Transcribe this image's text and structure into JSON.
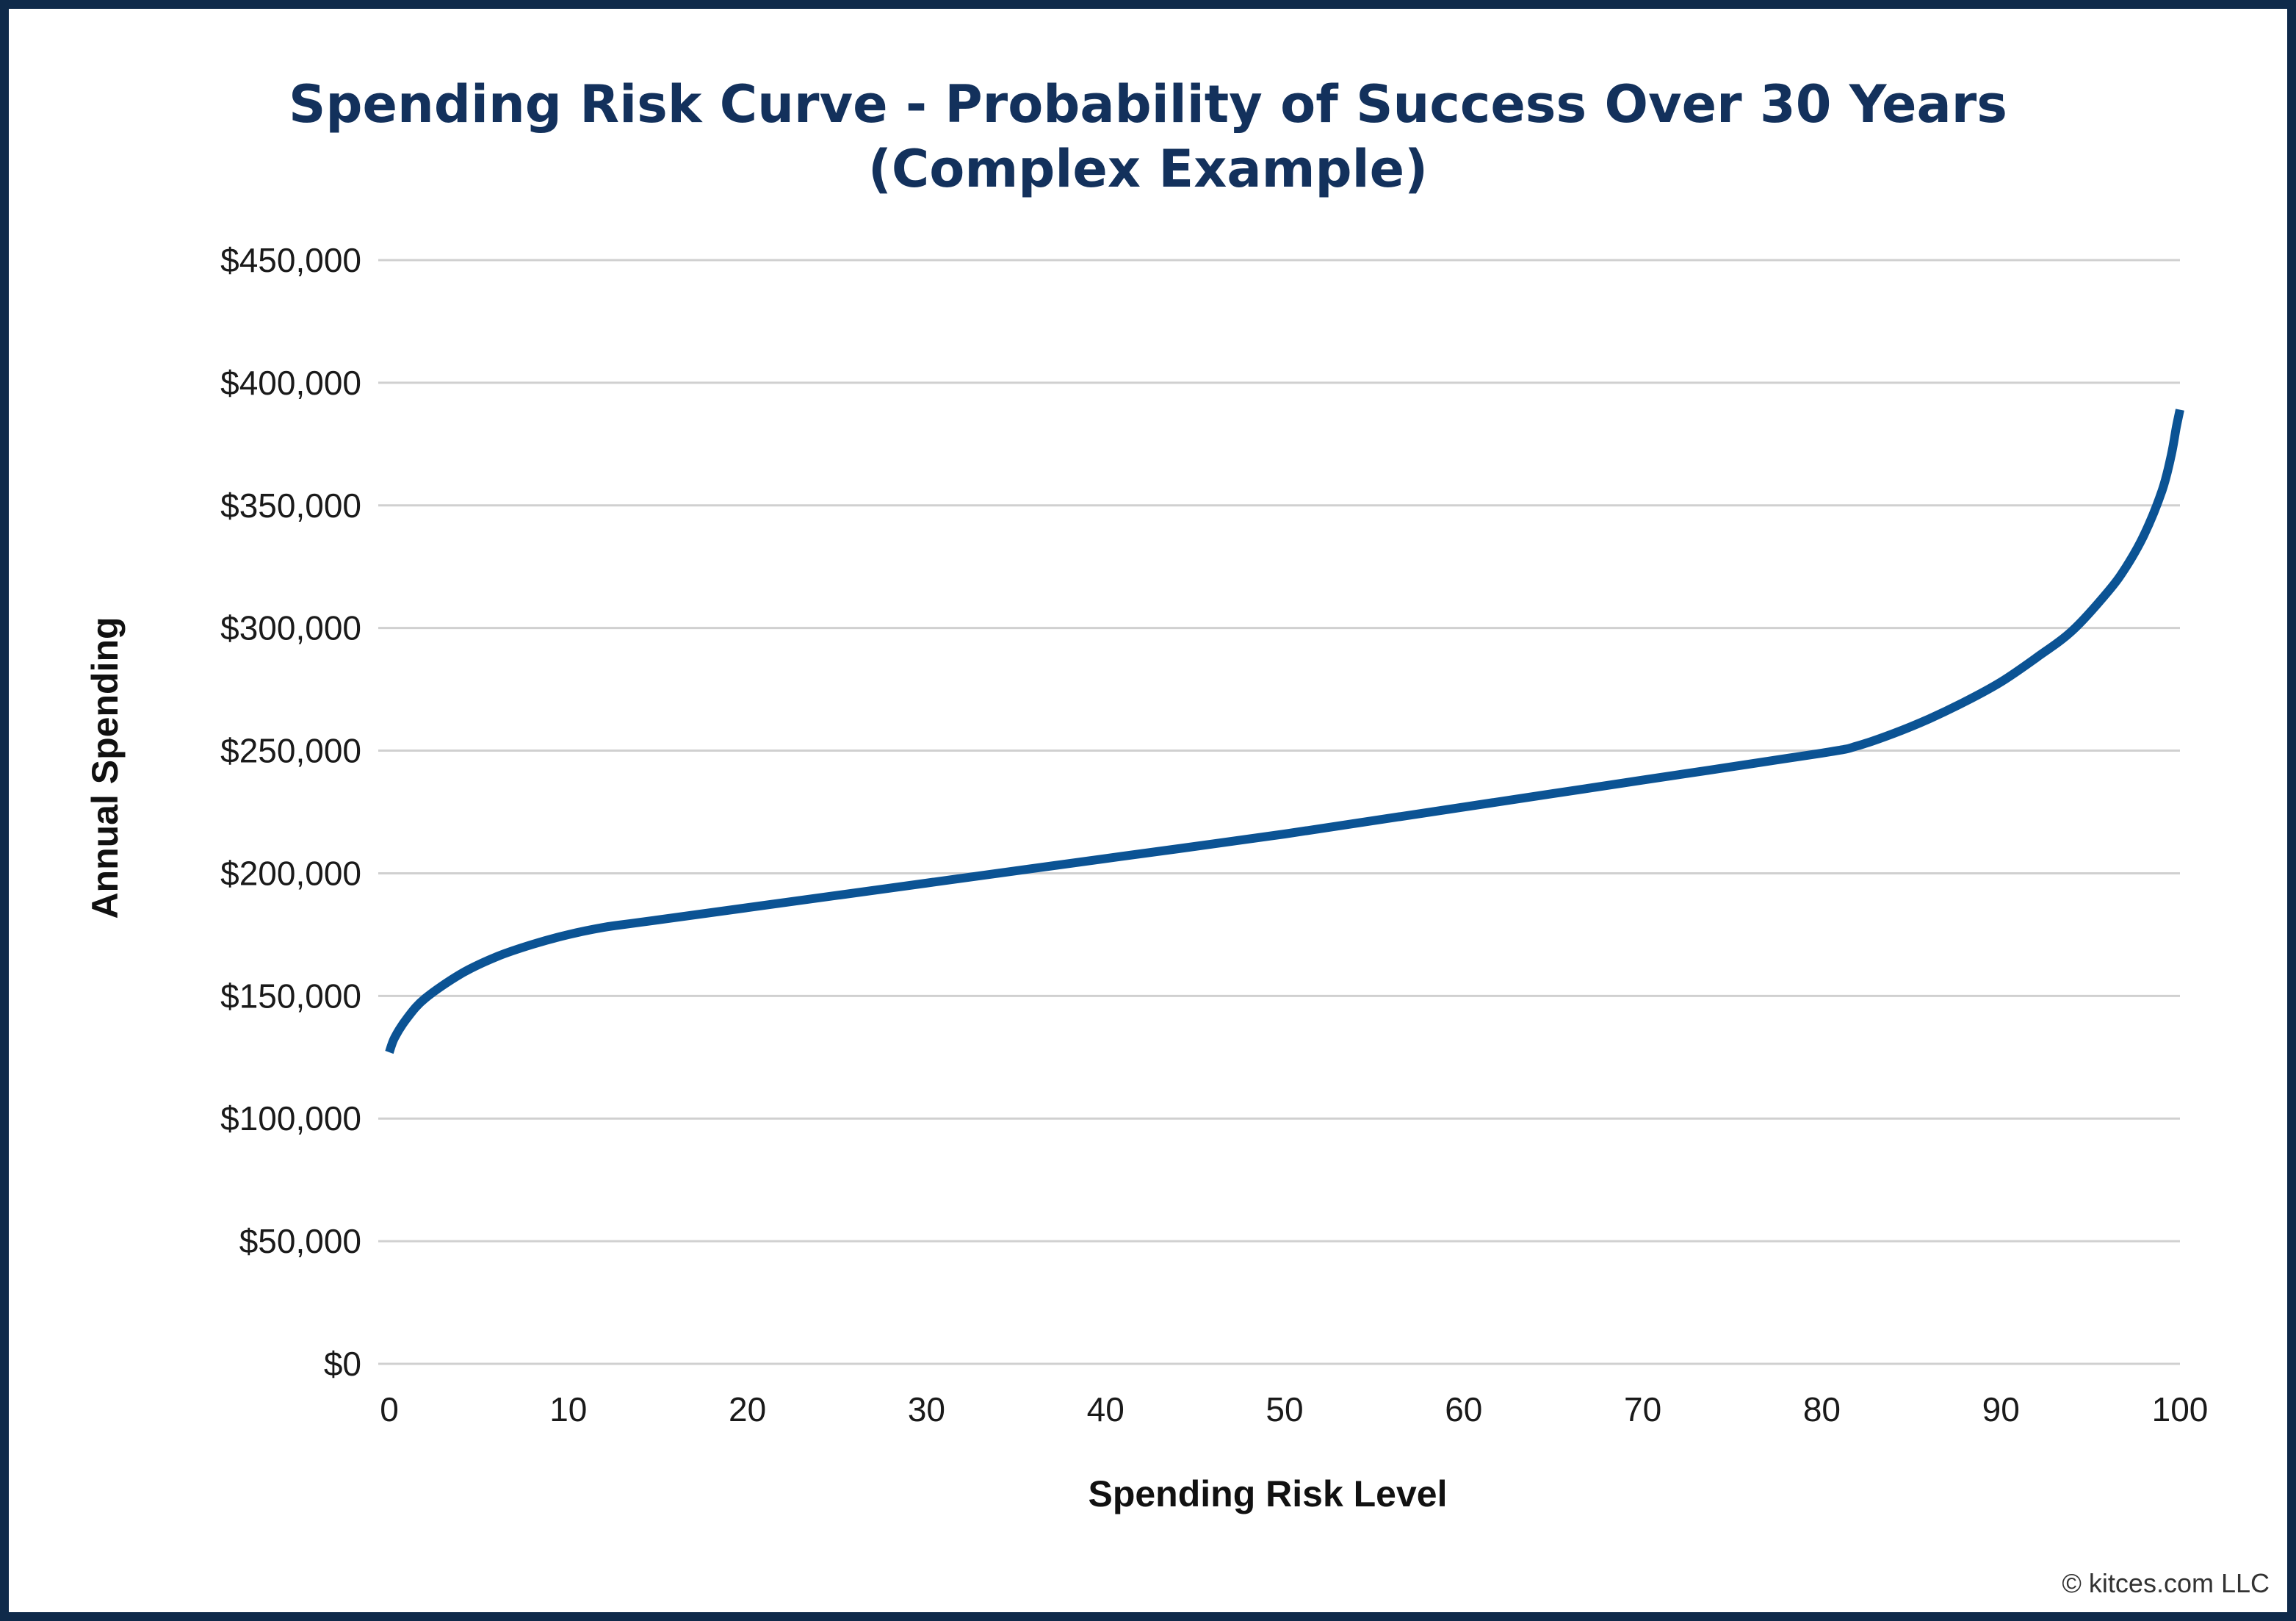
{
  "chart_data": {
    "type": "line",
    "title_line1": "Spending Risk Curve - Probability of Success Over 30 Years",
    "title_line2": "(Complex Example)",
    "xlabel": "Spending Risk Level",
    "ylabel": "Annual Spending",
    "xlim": [
      0,
      100
    ],
    "ylim": [
      0,
      450000
    ],
    "x_ticks": [
      "0",
      "10",
      "20",
      "30",
      "40",
      "50",
      "60",
      "70",
      "80",
      "90",
      "100"
    ],
    "y_ticks": [
      "$0",
      "$50,000",
      "$100,000",
      "$150,000",
      "$200,000",
      "$250,000",
      "$300,000",
      "$350,000",
      "$400,000",
      "$450,000"
    ],
    "grid": true,
    "series": [
      {
        "color": "#0b5394",
        "x": [
          0,
          0.3,
          1,
          2,
          4,
          6,
          8,
          10,
          12,
          14,
          20,
          30,
          40,
          50,
          60,
          70,
          80,
          82,
          84,
          86,
          88,
          90,
          92,
          94,
          96,
          97,
          98,
          99,
          99.5,
          99.8,
          100
        ],
        "y": [
          127000,
          133000,
          141000,
          149000,
          159000,
          166000,
          171000,
          175000,
          178000,
          180000,
          186000,
          196000,
          206000,
          216000,
          227000,
          238000,
          249000,
          252000,
          257000,
          263000,
          270000,
          278000,
          288000,
          299000,
          315000,
          325000,
          338000,
          356000,
          370000,
          382000,
          389000
        ]
      }
    ]
  },
  "footer": {
    "credit": "© kitces.com LLC"
  }
}
